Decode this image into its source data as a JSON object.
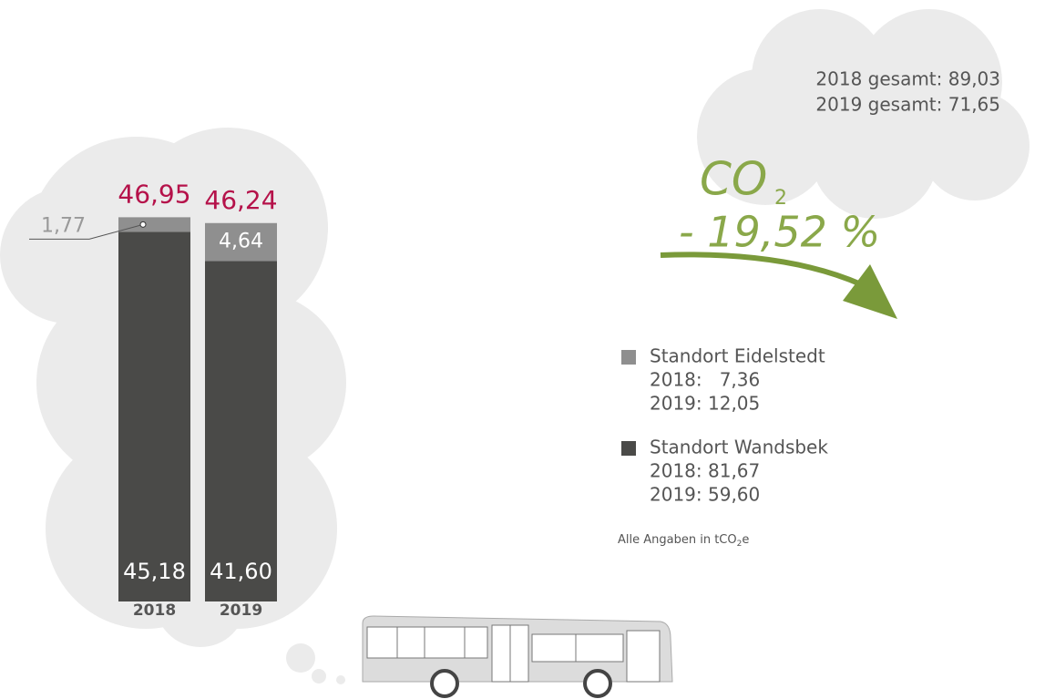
{
  "chart_data": {
    "type": "stacked-bar",
    "categories": [
      "2018",
      "2019"
    ],
    "series": [
      {
        "name": "Standort Wandsbek",
        "color": "#4a4a48",
        "values": [
          45.18,
          41.6
        ],
        "value_labels": [
          "45,18",
          "41,60"
        ],
        "details": [
          "2018: 81,67",
          "2019: 59,60"
        ]
      },
      {
        "name": "Standort Eidelstedt",
        "color": "#8f8f8f",
        "values": [
          1.77,
          4.64
        ],
        "value_labels": [
          "1,77",
          "4,64"
        ],
        "details": [
          "2018:   7,36",
          "2019: 12,05"
        ]
      }
    ],
    "totals": [
      46.95,
      46.24
    ],
    "total_labels": [
      "46,95",
      "46,24"
    ],
    "total_color": "#b5124a",
    "ylim": [
      0,
      50
    ],
    "summary": [
      "2018 gesamt: 89,03",
      "2019 gesamt: 71,65"
    ],
    "co2_label": {
      "main": "CO",
      "sub": "2",
      "change": "- 19,52 %"
    },
    "note": {
      "text": "Alle Angaben in tCO",
      "sub": "2",
      "tail": "e"
    }
  }
}
